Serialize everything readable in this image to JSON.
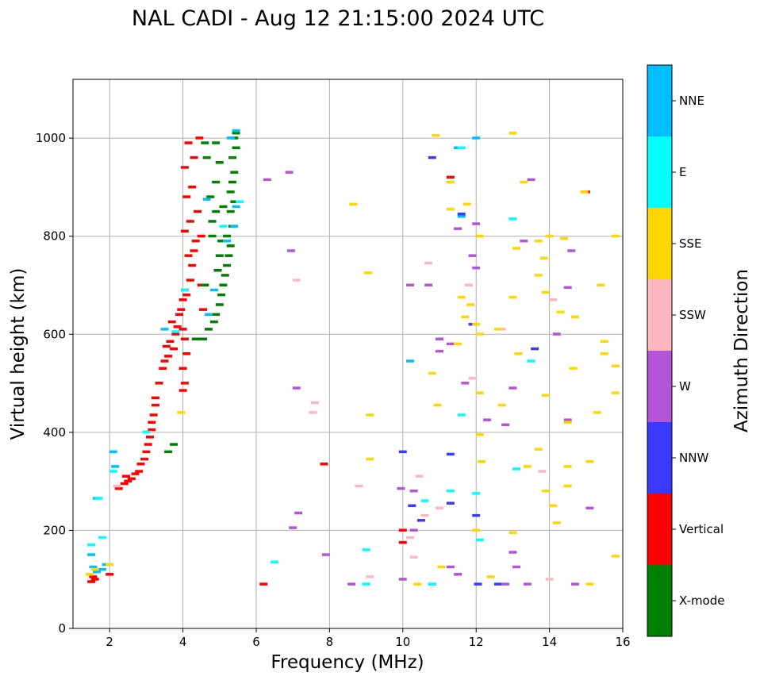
{
  "chart_data": {
    "type": "scatter",
    "title": "NAL CADI - Aug 12 21:15:00 2024 UTC",
    "xlabel": "Frequency (MHz)",
    "ylabel": "Virtual height (km)",
    "xlim": [
      1,
      16
    ],
    "ylim": [
      0,
      1120
    ],
    "xticks": [
      2,
      4,
      6,
      8,
      10,
      12,
      14,
      16
    ],
    "yticks": [
      0,
      200,
      400,
      600,
      800,
      1000
    ],
    "grid": true,
    "colorbar": {
      "label": "Azimuth Direction",
      "categories": [
        {
          "name": "X-mode",
          "color": "#008000"
        },
        {
          "name": "Vertical",
          "color": "#ff0000"
        },
        {
          "name": "NNW",
          "color": "#3a3aff"
        },
        {
          "name": "W",
          "color": "#b455d8"
        },
        {
          "name": "SSW",
          "color": "#ffb6c1"
        },
        {
          "name": "SSE",
          "color": "#ffd700"
        },
        {
          "name": "E",
          "color": "#00ffff"
        },
        {
          "name": "NNE",
          "color": "#00bfff"
        }
      ]
    },
    "series": [
      {
        "name": "Vertical",
        "points": [
          [
            1.5,
            95
          ],
          [
            1.55,
            105
          ],
          [
            1.6,
            100
          ],
          [
            2.0,
            110
          ],
          [
            2.25,
            285
          ],
          [
            2.4,
            295
          ],
          [
            2.45,
            310
          ],
          [
            2.5,
            300
          ],
          [
            2.6,
            305
          ],
          [
            2.7,
            315
          ],
          [
            2.8,
            320
          ],
          [
            2.85,
            335
          ],
          [
            2.95,
            345
          ],
          [
            3.0,
            360
          ],
          [
            3.05,
            375
          ],
          [
            3.1,
            390
          ],
          [
            3.15,
            405
          ],
          [
            3.15,
            420
          ],
          [
            3.2,
            435
          ],
          [
            3.25,
            455
          ],
          [
            3.25,
            470
          ],
          [
            3.35,
            500
          ],
          [
            3.45,
            530
          ],
          [
            3.5,
            545
          ],
          [
            3.6,
            555
          ],
          [
            3.55,
            575
          ],
          [
            3.65,
            585
          ],
          [
            3.75,
            570
          ],
          [
            3.8,
            600
          ],
          [
            3.85,
            615
          ],
          [
            3.7,
            625
          ],
          [
            3.9,
            640
          ],
          [
            3.95,
            650
          ],
          [
            4.0,
            670
          ],
          [
            4.05,
            690
          ],
          [
            4.1,
            680
          ],
          [
            4.2,
            710
          ],
          [
            4.25,
            740
          ],
          [
            4.15,
            760
          ],
          [
            4.3,
            770
          ],
          [
            4.35,
            790
          ],
          [
            4.05,
            810
          ],
          [
            4.2,
            830
          ],
          [
            4.4,
            850
          ],
          [
            4.1,
            880
          ],
          [
            4.25,
            900
          ],
          [
            4.05,
            940
          ],
          [
            4.15,
            990
          ],
          [
            4.3,
            960
          ],
          [
            4.5,
            800
          ],
          [
            4.55,
            650
          ],
          [
            4.0,
            610
          ],
          [
            4.05,
            590
          ],
          [
            4.1,
            560
          ],
          [
            4.0,
            530
          ],
          [
            4.05,
            500
          ],
          [
            4.0,
            485
          ],
          [
            4.5,
            700
          ],
          [
            4.45,
            1000
          ],
          [
            7.85,
            335
          ],
          [
            10.0,
            175
          ],
          [
            10.0,
            200
          ],
          [
            6.2,
            90
          ],
          [
            11.3,
            920
          ],
          [
            15.0,
            890
          ]
        ]
      },
      {
        "name": "X-mode",
        "points": [
          [
            3.6,
            360
          ],
          [
            3.75,
            375
          ],
          [
            4.35,
            590
          ],
          [
            4.55,
            590
          ],
          [
            4.7,
            610
          ],
          [
            4.85,
            625
          ],
          [
            4.9,
            640
          ],
          [
            5.0,
            660
          ],
          [
            5.05,
            680
          ],
          [
            5.1,
            700
          ],
          [
            5.15,
            720
          ],
          [
            5.2,
            740
          ],
          [
            5.25,
            760
          ],
          [
            5.3,
            780
          ],
          [
            5.2,
            800
          ],
          [
            5.35,
            820
          ],
          [
            5.3,
            850
          ],
          [
            5.4,
            870
          ],
          [
            5.3,
            890
          ],
          [
            5.35,
            910
          ],
          [
            5.4,
            930
          ],
          [
            5.35,
            960
          ],
          [
            5.45,
            980
          ],
          [
            5.4,
            1000
          ],
          [
            5.45,
            1010
          ],
          [
            5.0,
            760
          ],
          [
            4.8,
            800
          ],
          [
            4.9,
            850
          ],
          [
            4.75,
            880
          ],
          [
            4.9,
            910
          ],
          [
            5.0,
            950
          ],
          [
            4.6,
            990
          ],
          [
            4.9,
            990
          ],
          [
            5.1,
            860
          ],
          [
            4.95,
            730
          ],
          [
            5.05,
            790
          ],
          [
            4.65,
            960
          ],
          [
            4.8,
            830
          ],
          [
            4.6,
            700
          ]
        ]
      },
      {
        "name": "NNE",
        "points": [
          [
            1.5,
            150
          ],
          [
            1.55,
            125
          ],
          [
            1.65,
            115
          ],
          [
            1.8,
            120
          ],
          [
            1.9,
            130
          ],
          [
            2.1,
            360
          ],
          [
            2.15,
            330
          ],
          [
            1.65,
            265
          ],
          [
            3.5,
            610
          ],
          [
            4.7,
            640
          ],
          [
            4.85,
            690
          ],
          [
            5.2,
            790
          ],
          [
            5.4,
            820
          ],
          [
            5.45,
            860
          ],
          [
            5.3,
            1000
          ],
          [
            5.45,
            1015
          ],
          [
            4.65,
            875
          ],
          [
            12.0,
            1000
          ],
          [
            11.6,
            840
          ],
          [
            10.2,
            545
          ],
          [
            10.8,
            90
          ],
          [
            11.5,
            980
          ]
        ]
      },
      {
        "name": "E",
        "points": [
          [
            1.7,
            265
          ],
          [
            2.1,
            320
          ],
          [
            1.8,
            185
          ],
          [
            1.5,
            170
          ],
          [
            3.0,
            400
          ],
          [
            3.8,
            605
          ],
          [
            4.05,
            690
          ],
          [
            5.1,
            820
          ],
          [
            5.55,
            870
          ],
          [
            6.5,
            135
          ],
          [
            9.0,
            90
          ],
          [
            9.0,
            160
          ],
          [
            10.6,
            260
          ],
          [
            10.8,
            90
          ],
          [
            11.3,
            280
          ],
          [
            11.6,
            435
          ],
          [
            12.0,
            275
          ],
          [
            12.1,
            180
          ],
          [
            13.0,
            835
          ],
          [
            13.1,
            325
          ],
          [
            13.5,
            545
          ],
          [
            11.6,
            980
          ]
        ]
      },
      {
        "name": "NNW",
        "points": [
          [
            10.8,
            960
          ],
          [
            11.6,
            845
          ],
          [
            12.0,
            230
          ],
          [
            12.05,
            90
          ],
          [
            12.6,
            90
          ],
          [
            13.6,
            570
          ],
          [
            11.3,
            255
          ],
          [
            11.3,
            355
          ],
          [
            10.0,
            360
          ],
          [
            10.5,
            220
          ],
          [
            10.25,
            250
          ],
          [
            11.9,
            620
          ]
        ]
      },
      {
        "name": "W",
        "points": [
          [
            6.3,
            915
          ],
          [
            6.9,
            930
          ],
          [
            6.95,
            770
          ],
          [
            7.1,
            490
          ],
          [
            7.15,
            235
          ],
          [
            7.0,
            205
          ],
          [
            7.9,
            150
          ],
          [
            8.6,
            90
          ],
          [
            10.0,
            100
          ],
          [
            10.2,
            700
          ],
          [
            10.7,
            700
          ],
          [
            11.0,
            590
          ],
          [
            11.3,
            580
          ],
          [
            11.0,
            565
          ],
          [
            11.7,
            500
          ],
          [
            11.5,
            815
          ],
          [
            12.0,
            825
          ],
          [
            11.9,
            760
          ],
          [
            12.0,
            735
          ],
          [
            12.3,
            425
          ],
          [
            12.8,
            415
          ],
          [
            13.0,
            490
          ],
          [
            13.3,
            790
          ],
          [
            13.5,
            915
          ],
          [
            14.2,
            600
          ],
          [
            14.5,
            695
          ],
          [
            14.5,
            425
          ],
          [
            14.7,
            90
          ],
          [
            14.6,
            770
          ],
          [
            15.1,
            245
          ],
          [
            10.3,
            200
          ],
          [
            10.3,
            280
          ],
          [
            13.0,
            155
          ],
          [
            13.1,
            125
          ],
          [
            13.4,
            90
          ],
          [
            12.8,
            90
          ],
          [
            9.95,
            285
          ],
          [
            11.3,
            125
          ],
          [
            11.5,
            110
          ]
        ]
      },
      {
        "name": "SSW",
        "points": [
          [
            2.2,
            290
          ],
          [
            7.1,
            710
          ],
          [
            7.55,
            440
          ],
          [
            7.6,
            460
          ],
          [
            8.8,
            290
          ],
          [
            9.1,
            105
          ],
          [
            10.3,
            145
          ],
          [
            10.45,
            310
          ],
          [
            10.6,
            230
          ],
          [
            10.7,
            745
          ],
          [
            11.0,
            245
          ],
          [
            11.8,
            700
          ],
          [
            11.9,
            510
          ],
          [
            12.7,
            610
          ],
          [
            14.1,
            670
          ],
          [
            14.0,
            100
          ],
          [
            13.8,
            320
          ],
          [
            10.2,
            185
          ]
        ]
      },
      {
        "name": "SSE",
        "points": [
          [
            1.45,
            110
          ],
          [
            1.6,
            120
          ],
          [
            2.0,
            130
          ],
          [
            3.95,
            440
          ],
          [
            8.65,
            865
          ],
          [
            9.05,
            725
          ],
          [
            9.1,
            345
          ],
          [
            9.1,
            435
          ],
          [
            10.4,
            90
          ],
          [
            10.9,
            1005
          ],
          [
            10.95,
            455
          ],
          [
            11.3,
            910
          ],
          [
            11.5,
            580
          ],
          [
            11.6,
            675
          ],
          [
            11.75,
            865
          ],
          [
            11.85,
            660
          ],
          [
            12.1,
            800
          ],
          [
            12.0,
            620
          ],
          [
            12.1,
            600
          ],
          [
            12.1,
            480
          ],
          [
            12.1,
            395
          ],
          [
            12.0,
            200
          ],
          [
            12.4,
            105
          ],
          [
            12.6,
            610
          ],
          [
            12.7,
            455
          ],
          [
            13.0,
            195
          ],
          [
            13.0,
            675
          ],
          [
            13.0,
            1010
          ],
          [
            13.1,
            775
          ],
          [
            13.15,
            560
          ],
          [
            13.3,
            910
          ],
          [
            13.4,
            330
          ],
          [
            13.7,
            790
          ],
          [
            13.7,
            720
          ],
          [
            13.7,
            365
          ],
          [
            13.85,
            755
          ],
          [
            13.9,
            685
          ],
          [
            13.9,
            475
          ],
          [
            13.9,
            280
          ],
          [
            14.0,
            800
          ],
          [
            14.1,
            250
          ],
          [
            14.2,
            215
          ],
          [
            14.3,
            645
          ],
          [
            14.4,
            795
          ],
          [
            14.5,
            290
          ],
          [
            14.5,
            330
          ],
          [
            14.5,
            420
          ],
          [
            14.65,
            530
          ],
          [
            14.7,
            635
          ],
          [
            15.1,
            90
          ],
          [
            15.1,
            340
          ],
          [
            15.3,
            440
          ],
          [
            15.4,
            700
          ],
          [
            15.5,
            585
          ],
          [
            15.5,
            560
          ],
          [
            15.8,
            800
          ],
          [
            15.8,
            535
          ],
          [
            15.8,
            480
          ],
          [
            15.8,
            147
          ],
          [
            10.8,
            520
          ],
          [
            11.05,
            125
          ],
          [
            11.3,
            855
          ],
          [
            11.7,
            635
          ],
          [
            12.15,
            340
          ],
          [
            14.95,
            890
          ]
        ]
      }
    ]
  }
}
